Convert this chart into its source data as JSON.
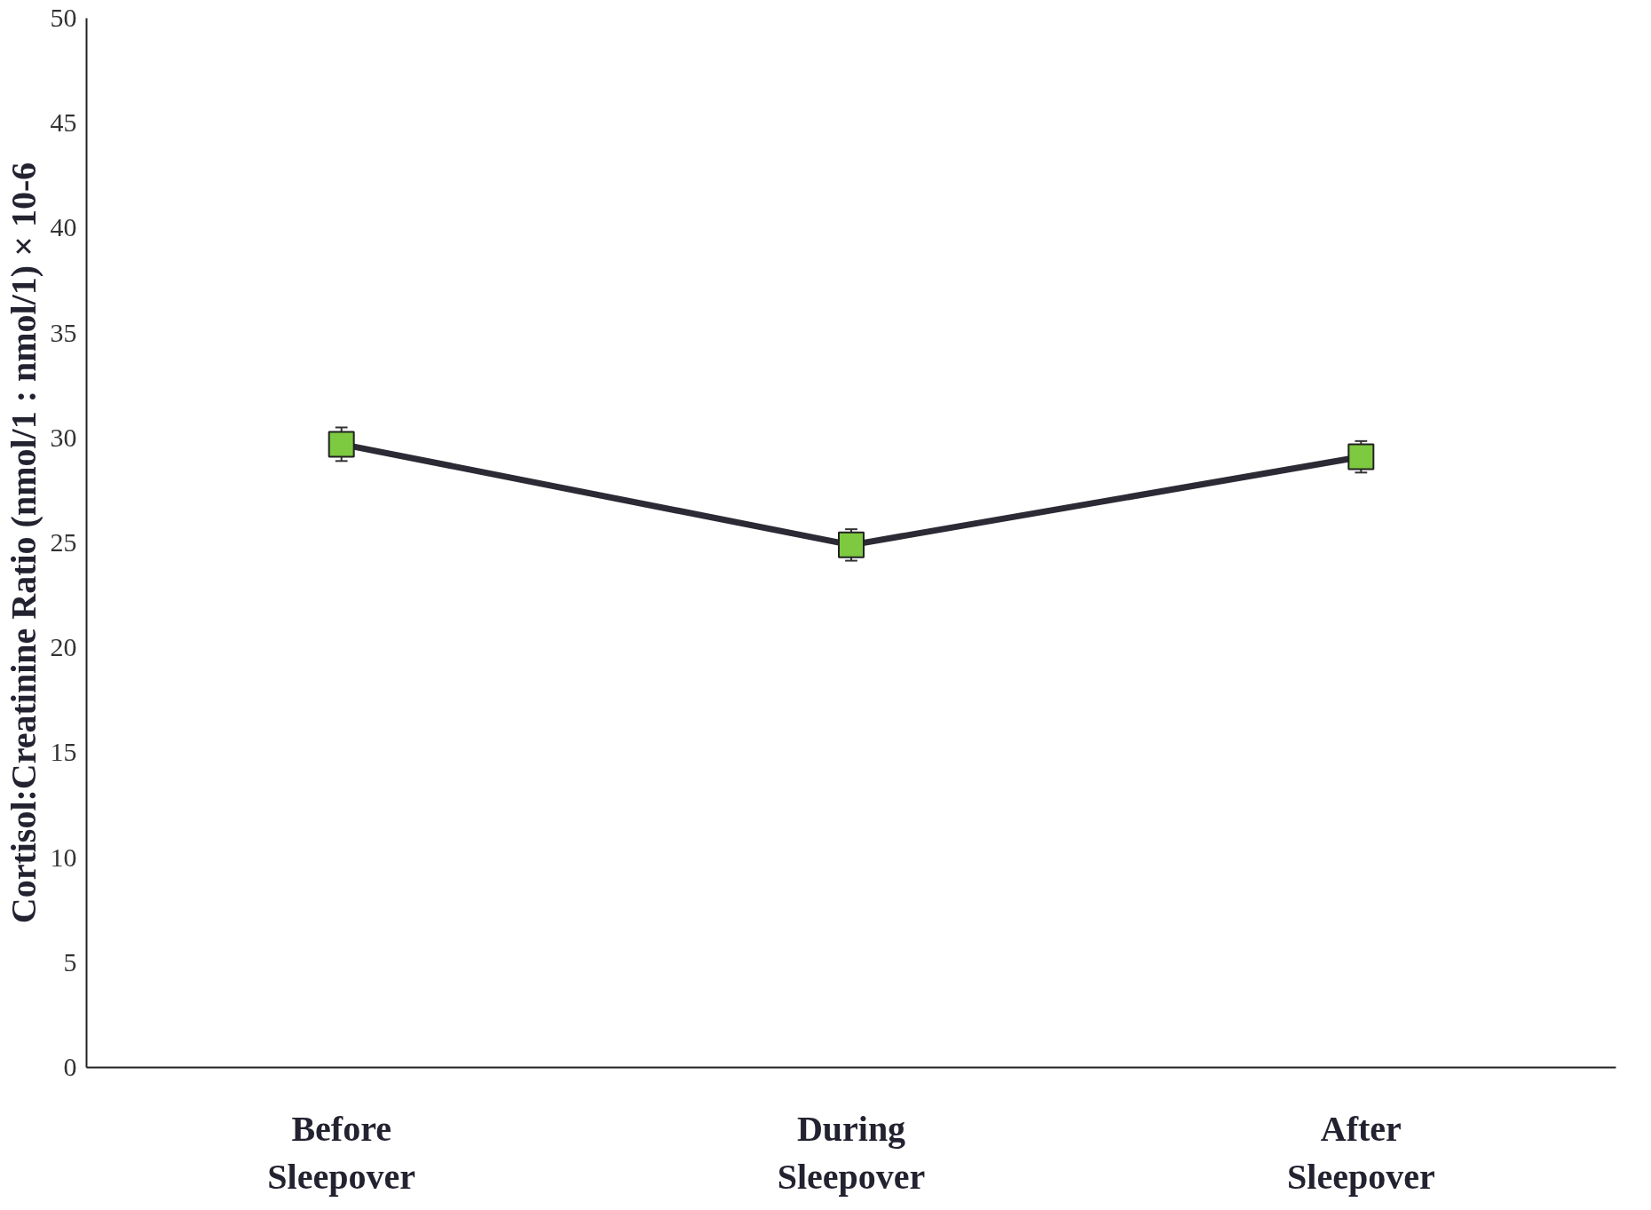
{
  "chart_data": {
    "type": "line",
    "ylabel": "Cortisol:Creatinine Ratio (nmol/1 : nmol/1) × 10-6",
    "categories": [
      "Before Sleepover",
      "During Sleepover",
      "After Sleepover"
    ],
    "series": [
      {
        "color": "#7dc940",
        "values": [
          29.7,
          24.9,
          29.1
        ],
        "errors": [
          0.8,
          0.75,
          0.75
        ]
      }
    ],
    "ylim": [
      0,
      50
    ],
    "yticks": [
      0,
      5,
      10,
      15,
      20,
      25,
      30,
      35,
      40,
      45,
      50
    ],
    "grid": false,
    "marker": "square",
    "line_style": "solid"
  }
}
